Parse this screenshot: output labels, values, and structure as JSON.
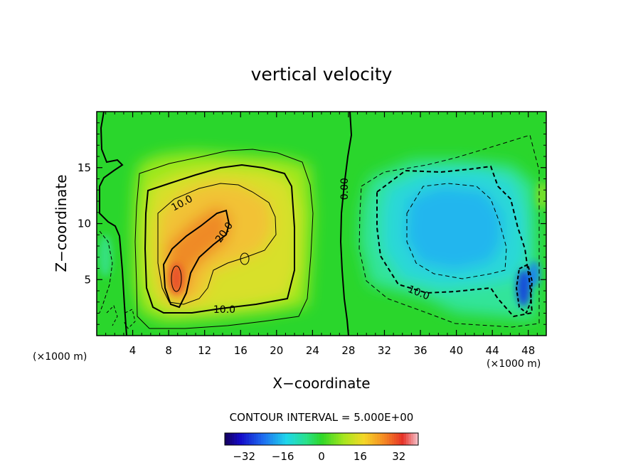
{
  "chart_data": {
    "type": "heatmap",
    "title": "vertical velocity",
    "xlabel": "X−coordinate",
    "ylabel": "Z−coordinate",
    "x_unit_left": "(×1000 m)",
    "x_unit_right": "(×1000 m)",
    "xlim": [
      0,
      50
    ],
    "ylim": [
      0,
      20
    ],
    "x_ticks": [
      4,
      8,
      12,
      16,
      20,
      24,
      28,
      32,
      36,
      40,
      44,
      48
    ],
    "y_ticks": [
      5,
      10,
      15
    ],
    "contour_interval_text": "CONTOUR INTERVAL = 5.000E+00",
    "contour_labels": [
      {
        "text": "10.0",
        "x": 9.5,
        "y": 11.8
      },
      {
        "text": "20.0",
        "x": 14.2,
        "y": 9.2
      },
      {
        "text": "10.0",
        "x": 14.2,
        "y": 2.3
      },
      {
        "text": "0.00",
        "x": 27.6,
        "y": 13.1
      },
      {
        "text": "10.0",
        "x": 35.8,
        "y": 3.8
      }
    ],
    "extrema": {
      "max": 34,
      "min": -36
    },
    "colorbar": {
      "range": [
        -40,
        40
      ],
      "ticks": [
        -32,
        -16,
        0,
        16,
        32
      ],
      "tick_labels": [
        "−32",
        "−16",
        "0",
        "16",
        "32"
      ]
    }
  }
}
